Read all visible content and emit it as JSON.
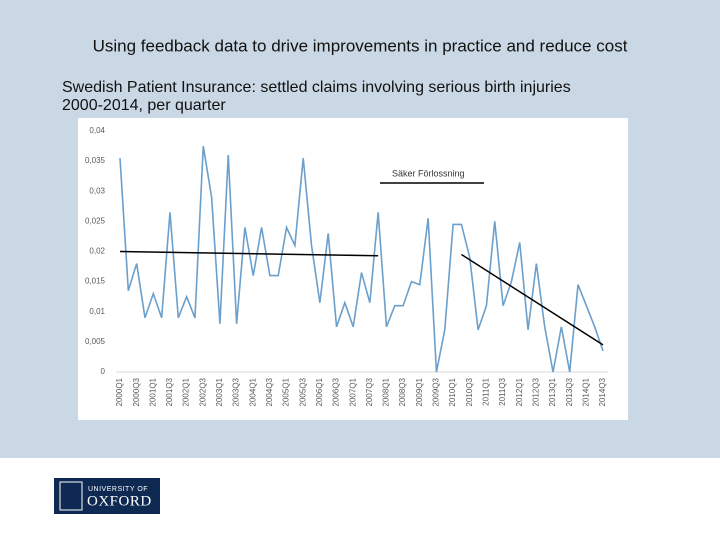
{
  "slide": {
    "title": "Using feedback data to drive improvements in practice and reduce cost",
    "subtitle": [
      "Swedish Patient Insurance: settled claims involving serious birth injuries",
      "2000-2014, per quarter"
    ],
    "logo": [
      "UNIVERSITY OF",
      "OXFORD"
    ]
  },
  "chart_data": {
    "type": "line",
    "categories": [
      "2000Q1",
      null,
      "2000Q3",
      null,
      "2001Q1",
      null,
      "2001Q3",
      null,
      "2002Q1",
      null,
      "2002Q3",
      null,
      "2003Q1",
      null,
      "2003Q3",
      null,
      "2004Q1",
      null,
      "2004Q3",
      null,
      "2005Q1",
      null,
      "2005Q3",
      null,
      "2006Q1",
      null,
      "2006Q3",
      null,
      "2007Q1",
      null,
      "2007Q3",
      null,
      "2008Q1",
      null,
      "2008Q3",
      null,
      "2009Q1",
      null,
      "2009Q3",
      null,
      "2010Q1",
      null,
      "2010Q3",
      null,
      "2011Q1",
      null,
      "2011Q3",
      null,
      "2012Q1",
      null,
      "2012Q3",
      null,
      "2013Q1",
      null,
      "2013Q3",
      null,
      "2014Q1",
      null,
      "2014Q3"
    ],
    "series": [
      {
        "name": "Säker Förlossning",
        "color": "#6b9fcc",
        "values": [
          0.0355,
          0.0135,
          0.018,
          0.009,
          0.013,
          0.009,
          0.0265,
          0.009,
          0.0125,
          0.009,
          0.0375,
          0.029,
          0.008,
          0.036,
          0.008,
          0.024,
          0.016,
          0.024,
          0.016,
          0.016,
          0.024,
          0.021,
          0.0355,
          0.021,
          0.0115,
          0.023,
          0.0075,
          0.0115,
          0.0075,
          0.0165,
          0.0115,
          0.0265,
          0.0075,
          0.011,
          0.011,
          0.015,
          0.0145,
          0.0255,
          0,
          0.007,
          0.0245,
          0.0245,
          0.019,
          0.007,
          0.011,
          0.025,
          0.011,
          0.015,
          0.0215,
          0.007,
          0.018,
          0.0075,
          0,
          0.0075,
          0,
          0.0145,
          0.011,
          0.0075,
          0.0035
        ]
      }
    ],
    "trend_lines": [
      {
        "x": [
          0,
          31
        ],
        "y": [
          0.02,
          0.0193
        ],
        "color": "#000000"
      },
      {
        "x": [
          41,
          58
        ],
        "y": [
          0.0195,
          0.0045
        ],
        "color": "#000000"
      }
    ],
    "legend_line_color": "#000000",
    "ylim": [
      0,
      0.04
    ],
    "yticks": [
      0,
      {
        "value": 0.005,
        "label": "0,005"
      },
      {
        "value": 0.01,
        "label": "0,01"
      },
      {
        "value": 0.015,
        "label": "0,015"
      },
      {
        "value": 0.02,
        "label": "0,02"
      },
      {
        "value": 0.025,
        "label": "0,025"
      },
      {
        "value": 0.03,
        "label": "0,03"
      },
      {
        "value": 0.035,
        "label": "0,035"
      },
      {
        "value": 0.04,
        "label": "0,04"
      }
    ],
    "grid": false
  }
}
